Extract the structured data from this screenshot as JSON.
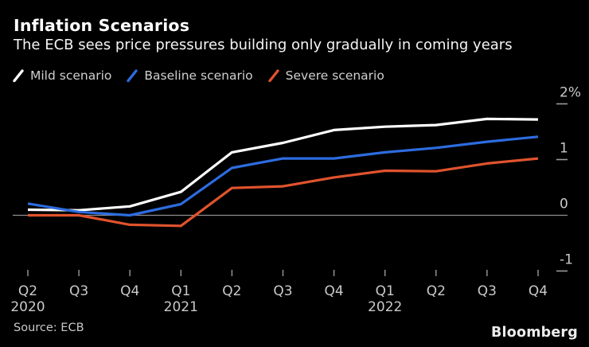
{
  "header": {
    "title": "Inflation Scenarios",
    "subtitle": "The ECB sees price pressures building only gradually in coming years"
  },
  "legend": {
    "items": [
      {
        "label": "Mild scenario",
        "color": "#ffffff"
      },
      {
        "label": "Baseline scenario",
        "color": "#2d6cdf"
      },
      {
        "label": "Severe scenario",
        "color": "#e0532d"
      }
    ]
  },
  "chart_data": {
    "type": "line",
    "title": "Inflation Scenarios",
    "subtitle": "The ECB sees price pressures building only gradually in coming years",
    "unit": "%",
    "grid": false,
    "legend_position": "top-left",
    "ylim": [
      -1.45,
      2.3
    ],
    "yticks": [
      {
        "value": 2,
        "label": "2%"
      },
      {
        "value": 1,
        "label": "1"
      },
      {
        "value": 0,
        "label": "0"
      },
      {
        "value": -1,
        "label": "-1"
      }
    ],
    "categories": [
      {
        "quarter": "Q2",
        "year": "2020"
      },
      {
        "quarter": "Q3"
      },
      {
        "quarter": "Q4"
      },
      {
        "quarter": "Q1",
        "year": "2021"
      },
      {
        "quarter": "Q2"
      },
      {
        "quarter": "Q3"
      },
      {
        "quarter": "Q4"
      },
      {
        "quarter": "Q1",
        "year": "2022"
      },
      {
        "quarter": "Q2"
      },
      {
        "quarter": "Q3"
      },
      {
        "quarter": "Q4"
      }
    ],
    "series": [
      {
        "name": "Mild scenario",
        "color": "#ffffff",
        "values": [
          0.1,
          0.09,
          0.16,
          0.42,
          1.13,
          1.3,
          1.53,
          1.59,
          1.62,
          1.73,
          1.72
        ]
      },
      {
        "name": "Baseline scenario",
        "color": "#2d6cdf",
        "values": [
          0.21,
          0.06,
          0.0,
          0.2,
          0.85,
          1.02,
          1.02,
          1.13,
          1.21,
          1.32,
          1.41
        ]
      },
      {
        "name": "Severe scenario",
        "color": "#e0532d",
        "values": [
          0.0,
          0.0,
          -0.17,
          -0.19,
          0.49,
          0.52,
          0.68,
          0.8,
          0.79,
          0.93,
          1.02
        ]
      }
    ]
  },
  "footer": {
    "source": "Source: ECB",
    "brand": "Bloomberg"
  },
  "colors": {
    "background": "#000000",
    "title_text": "#ffffff",
    "subtitle_text": "#f5f5f5",
    "legend_text": "#d0d0d0",
    "axis_label": "#c9c9c9",
    "tick": "#9a9a9a",
    "zero_line": "#8f8f8f",
    "source_text": "#c9c9c9",
    "brand_text": "#ececec"
  }
}
